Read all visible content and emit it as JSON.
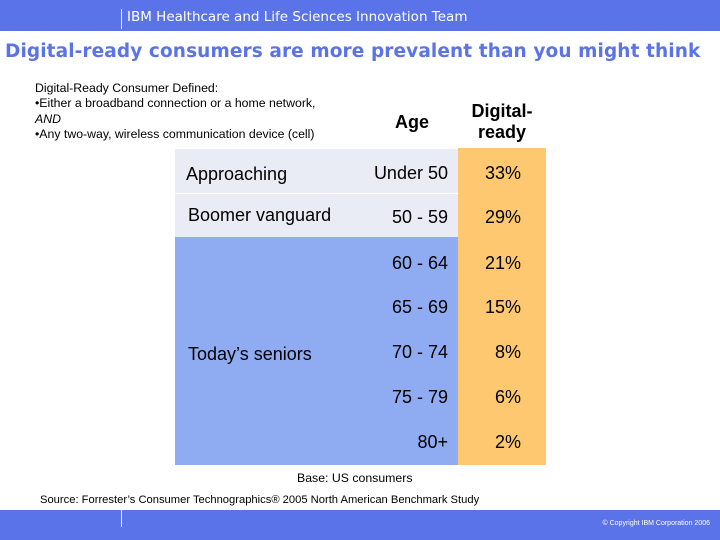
{
  "header": {
    "team": "IBM Healthcare and Life Sciences Innovation Team"
  },
  "slide": {
    "title": "Digital-ready consumers are more prevalent than you might think",
    "definition": {
      "heading": "Digital-Ready Consumer Defined:",
      "item1": "•Either a broadband connection or a home network,",
      "and_text": "AND",
      "item2": "•Any two-way, wireless communication device (cell)"
    }
  },
  "table": {
    "headers": {
      "age": "Age",
      "digital_ready": "Digital-ready"
    },
    "segments": {
      "approaching": "Approaching",
      "boomer_vanguard": "Boomer vanguard",
      "todays_seniors": "Today’s seniors"
    },
    "rows": [
      {
        "age": "Under 50",
        "pct": "33%"
      },
      {
        "age": "50 - 59",
        "pct": "29%"
      },
      {
        "age": "60 - 64",
        "pct": "21%"
      },
      {
        "age": "65 - 69",
        "pct": "15%"
      },
      {
        "age": "70 - 74",
        "pct": "8%"
      },
      {
        "age": "75 - 79",
        "pct": "6%"
      },
      {
        "age": "80+",
        "pct": "2%"
      }
    ]
  },
  "notes": {
    "base": "Base:  US consumers",
    "source": "Source:  Forrester’s Consumer Technographics® 2005 North American Benchmark Study"
  },
  "footer": {
    "copyright": "© Copyright IBM Corporation 2006"
  },
  "colors": {
    "brand_blue": "#5b73e8",
    "orange": "#fdc86f",
    "light_band": "#e9ebf5",
    "blue_band": "#8fabf1"
  }
}
